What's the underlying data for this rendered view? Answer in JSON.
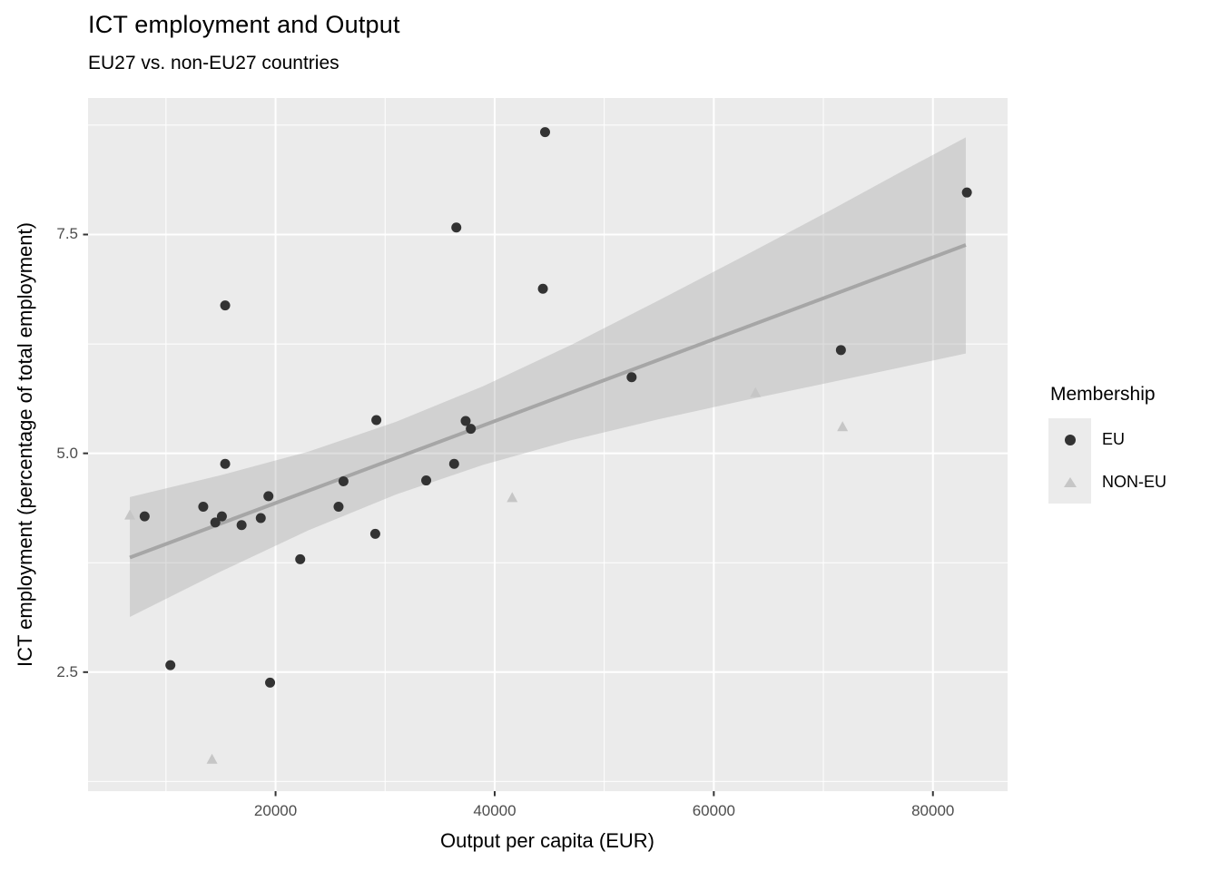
{
  "title": "ICT employment and Output",
  "subtitle": "EU27 vs. non-EU27 countries",
  "axes": {
    "x": {
      "label": "Output per capita (EUR)",
      "ticks": [
        20000,
        40000,
        60000,
        80000
      ],
      "tick_labels": [
        "20000",
        "40000",
        "60000",
        "80000"
      ],
      "minor_ticks": [
        10000,
        30000,
        50000,
        70000
      ],
      "range": [
        2885,
        86815
      ]
    },
    "y": {
      "label": "ICT employment (percentage of total employment)",
      "ticks": [
        2.5,
        5.0,
        7.5
      ],
      "tick_labels": [
        "2.5",
        "5.0",
        "7.5"
      ],
      "minor_ticks": [
        1.25,
        3.75,
        6.25,
        8.75
      ],
      "range": [
        1.14,
        9.06
      ]
    }
  },
  "legend": {
    "title": "Membership",
    "entries": [
      {
        "label": "EU",
        "shape": "circle",
        "color": "#333333"
      },
      {
        "label": "NON-EU",
        "shape": "triangle",
        "color": "#c6c6c6"
      }
    ]
  },
  "colors": {
    "panel_background": "#ebebeb",
    "grid_major": "#ffffff",
    "grid_minor": "#ffffff",
    "tick_mark": "#333333",
    "tick_text": "#4d4d4d",
    "eu_point": "#333333",
    "noneu_point": "#c6c6c6",
    "trend_line": "#a6a6a6",
    "ribbon": "#9e9e9e"
  },
  "chart_data": {
    "type": "scatter",
    "title": "ICT employment and Output",
    "subtitle": "EU27 vs. non-EU27 countries",
    "xlabel": "Output per capita (EUR)",
    "ylabel": "ICT employment (percentage of total employment)",
    "xlim": [
      2885,
      86815
    ],
    "ylim": [
      1.14,
      9.06
    ],
    "grid": true,
    "legend_position": "right",
    "series": [
      {
        "name": "EU",
        "shape": "circle",
        "color": "#333333",
        "points": [
          [
            44600,
            8.67
          ],
          [
            83100,
            7.98
          ],
          [
            36500,
            7.58
          ],
          [
            44400,
            6.88
          ],
          [
            15400,
            6.69
          ],
          [
            71600,
            6.18
          ],
          [
            52500,
            5.87
          ],
          [
            29200,
            5.38
          ],
          [
            37350,
            5.37
          ],
          [
            37820,
            5.28
          ],
          [
            15400,
            4.88
          ],
          [
            36300,
            4.88
          ],
          [
            33750,
            4.69
          ],
          [
            26200,
            4.68
          ],
          [
            19350,
            4.51
          ],
          [
            13400,
            4.39
          ],
          [
            25750,
            4.39
          ],
          [
            8050,
            4.28
          ],
          [
            15100,
            4.28
          ],
          [
            18650,
            4.26
          ],
          [
            14500,
            4.21
          ],
          [
            16900,
            4.18
          ],
          [
            29100,
            4.08
          ],
          [
            22250,
            3.79
          ],
          [
            10400,
            2.58
          ],
          [
            19500,
            2.38
          ]
        ]
      },
      {
        "name": "NON-EU",
        "shape": "triangle",
        "color": "#c6c6c6",
        "points": [
          [
            6700,
            4.29
          ],
          [
            41600,
            4.49
          ],
          [
            63800,
            5.69
          ],
          [
            71750,
            5.3
          ],
          [
            14200,
            1.5
          ]
        ]
      }
    ],
    "smooth": {
      "method": "lm",
      "line": {
        "x": [
          6700,
          83000
        ],
        "y": [
          3.81,
          7.38
        ]
      },
      "ribbon": [
        [
          6700,
          3.13,
          4.5
        ],
        [
          15000,
          3.65,
          4.75
        ],
        [
          23000,
          4.12,
          5.02
        ],
        [
          31000,
          4.53,
          5.36
        ],
        [
          39000,
          4.87,
          5.77
        ],
        [
          47000,
          5.15,
          6.24
        ],
        [
          55000,
          5.39,
          6.75
        ],
        [
          63000,
          5.61,
          7.27
        ],
        [
          71000,
          5.82,
          7.8
        ],
        [
          77000,
          5.98,
          8.21
        ],
        [
          83000,
          6.14,
          8.61
        ]
      ]
    }
  }
}
